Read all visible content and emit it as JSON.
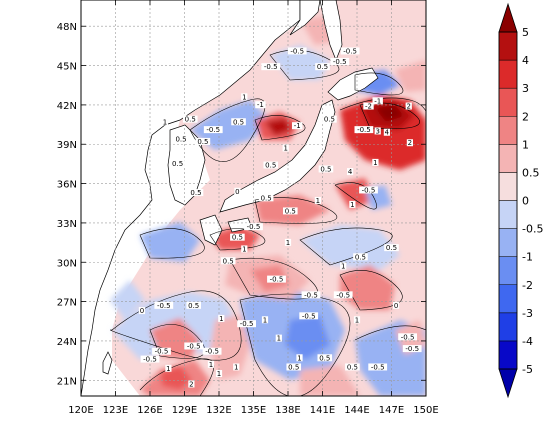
{
  "map": {
    "lon_labels": [
      "120E",
      "123E",
      "126E",
      "129E",
      "132E",
      "135E",
      "138E",
      "141E",
      "144E",
      "147E",
      "150E"
    ],
    "lat_labels": [
      "21N",
      "24N",
      "27N",
      "30N",
      "33N",
      "36N",
      "39N",
      "42N",
      "45N",
      "48N"
    ],
    "lon_range": [
      120,
      150
    ],
    "lat_range": [
      19.8,
      50
    ],
    "grid": true
  },
  "colorbar": {
    "levels": [
      "-5",
      "-4",
      "-3",
      "-2",
      "-1",
      "-0.5",
      "0",
      "0.5",
      "1",
      "2",
      "3",
      "4",
      "5"
    ],
    "colors": [
      "#0808c8",
      "#1f3fe6",
      "#3f68f0",
      "#6a8ef2",
      "#98b2f3",
      "#c6d4f6",
      "#f6dede",
      "#f4b4b4",
      "#ef8484",
      "#e95656",
      "#dc2a2a",
      "#b41010"
    ],
    "end_low": "#0000aa",
    "end_high": "#8a0000"
  },
  "contour_labels": [
    {
      "t": "-0.5",
      "lon": 138.8,
      "lat": 46.0
    },
    {
      "t": "-0.5",
      "lon": 142.5,
      "lat": 45.2
    },
    {
      "t": "0.5",
      "lon": 141.0,
      "lat": 44.8
    },
    {
      "t": "-0.5",
      "lon": 143.4,
      "lat": 46.0
    },
    {
      "t": "-0.5",
      "lon": 136.5,
      "lat": 44.8
    },
    {
      "t": "1",
      "lon": 134.2,
      "lat": 42.5
    },
    {
      "t": "-1",
      "lon": 135.6,
      "lat": 41.9
    },
    {
      "t": "0.5",
      "lon": 133.7,
      "lat": 40.6
    },
    {
      "t": "-0.5",
      "lon": 131.5,
      "lat": 40.0
    },
    {
      "t": "0.5",
      "lon": 129.5,
      "lat": 40.8
    },
    {
      "t": "0.5",
      "lon": 128.7,
      "lat": 39.3
    },
    {
      "t": "1",
      "lon": 127.3,
      "lat": 40.6
    },
    {
      "t": "0.5",
      "lon": 130.6,
      "lat": 39.1
    },
    {
      "t": "0.5",
      "lon": 128.4,
      "lat": 37.4
    },
    {
      "t": "-1",
      "lon": 138.8,
      "lat": 40.3
    },
    {
      "t": "1",
      "lon": 137.8,
      "lat": 38.6
    },
    {
      "t": "0.5",
      "lon": 136.5,
      "lat": 37.3
    },
    {
      "t": "0.5",
      "lon": 141.6,
      "lat": 40.8
    },
    {
      "t": "-2",
      "lon": 145.0,
      "lat": 41.8
    },
    {
      "t": "-1",
      "lon": 145.8,
      "lat": 42.2
    },
    {
      "t": "2",
      "lon": 148.5,
      "lat": 41.8
    },
    {
      "t": "-0.5",
      "lon": 144.6,
      "lat": 40.0
    },
    {
      "t": "3",
      "lon": 145.8,
      "lat": 39.9
    },
    {
      "t": "4",
      "lon": 146.6,
      "lat": 39.8
    },
    {
      "t": "2",
      "lon": 148.6,
      "lat": 39.0
    },
    {
      "t": "4",
      "lon": 143.4,
      "lat": 36.8
    },
    {
      "t": "0.5",
      "lon": 141.3,
      "lat": 37.0
    },
    {
      "t": "1",
      "lon": 145.6,
      "lat": 37.5
    },
    {
      "t": "-0.5",
      "lon": 145.0,
      "lat": 35.4
    },
    {
      "t": "1",
      "lon": 143.6,
      "lat": 34.3
    },
    {
      "t": "0.5",
      "lon": 130.0,
      "lat": 35.2
    },
    {
      "t": "0",
      "lon": 133.6,
      "lat": 35.3
    },
    {
      "t": "0.5",
      "lon": 136.1,
      "lat": 34.8
    },
    {
      "t": "1",
      "lon": 140.6,
      "lat": 34.6
    },
    {
      "t": "0.5",
      "lon": 138.2,
      "lat": 33.8
    },
    {
      "t": "-0.5",
      "lon": 135.0,
      "lat": 32.6
    },
    {
      "t": "0.5",
      "lon": 133.6,
      "lat": 31.8
    },
    {
      "t": "1",
      "lon": 138.0,
      "lat": 31.4
    },
    {
      "t": "1",
      "lon": 134.2,
      "lat": 30.9
    },
    {
      "t": "0.5",
      "lon": 132.8,
      "lat": 30.0
    },
    {
      "t": "0.5",
      "lon": 144.3,
      "lat": 30.3
    },
    {
      "t": "1",
      "lon": 142.8,
      "lat": 29.6
    },
    {
      "t": "0.5",
      "lon": 147.0,
      "lat": 31.0
    },
    {
      "t": "-0.5",
      "lon": 137.0,
      "lat": 28.6
    },
    {
      "t": "-0.5",
      "lon": 140.0,
      "lat": 27.4
    },
    {
      "t": "-0.5",
      "lon": 142.8,
      "lat": 27.4
    },
    {
      "t": "0",
      "lon": 125.3,
      "lat": 26.2
    },
    {
      "t": "-0.5",
      "lon": 127.2,
      "lat": 26.6
    },
    {
      "t": "0.5",
      "lon": 129.8,
      "lat": 26.6
    },
    {
      "t": "1",
      "lon": 132.2,
      "lat": 25.6
    },
    {
      "t": "-0.5",
      "lon": 134.4,
      "lat": 25.2
    },
    {
      "t": "1",
      "lon": 136.0,
      "lat": 25.5
    },
    {
      "t": "-0.5",
      "lon": 139.8,
      "lat": 25.8
    },
    {
      "t": "1",
      "lon": 137.2,
      "lat": 24.1
    },
    {
      "t": "-0.5",
      "lon": 129.8,
      "lat": 23.5
    },
    {
      "t": "-0.5",
      "lon": 131.4,
      "lat": 23.1
    },
    {
      "t": "-0.5",
      "lon": 126.0,
      "lat": 22.5
    },
    {
      "t": "-0.5",
      "lon": 127.0,
      "lat": 23.1
    },
    {
      "t": "1",
      "lon": 127.6,
      "lat": 21.8
    },
    {
      "t": "1",
      "lon": 131.3,
      "lat": 22.1
    },
    {
      "t": "1",
      "lon": 132.0,
      "lat": 21.4
    },
    {
      "t": "0.5",
      "lon": 141.2,
      "lat": 22.6
    },
    {
      "t": "0.5",
      "lon": 138.5,
      "lat": 21.9
    },
    {
      "t": "1",
      "lon": 139.0,
      "lat": 22.6
    },
    {
      "t": "0.5",
      "lon": 143.6,
      "lat": 21.9
    },
    {
      "t": "-0.5",
      "lon": 148.4,
      "lat": 24.2
    },
    {
      "t": "-0.5",
      "lon": 148.8,
      "lat": 23.3
    },
    {
      "t": "-0.5",
      "lon": 145.8,
      "lat": 21.9
    },
    {
      "t": "1",
      "lon": 133.5,
      "lat": 21.9
    },
    {
      "t": "2",
      "lon": 129.6,
      "lat": 20.6
    },
    {
      "t": "1",
      "lon": 144.0,
      "lat": 25.5
    },
    {
      "t": "0",
      "lon": 147.4,
      "lat": 26.6
    }
  ]
}
